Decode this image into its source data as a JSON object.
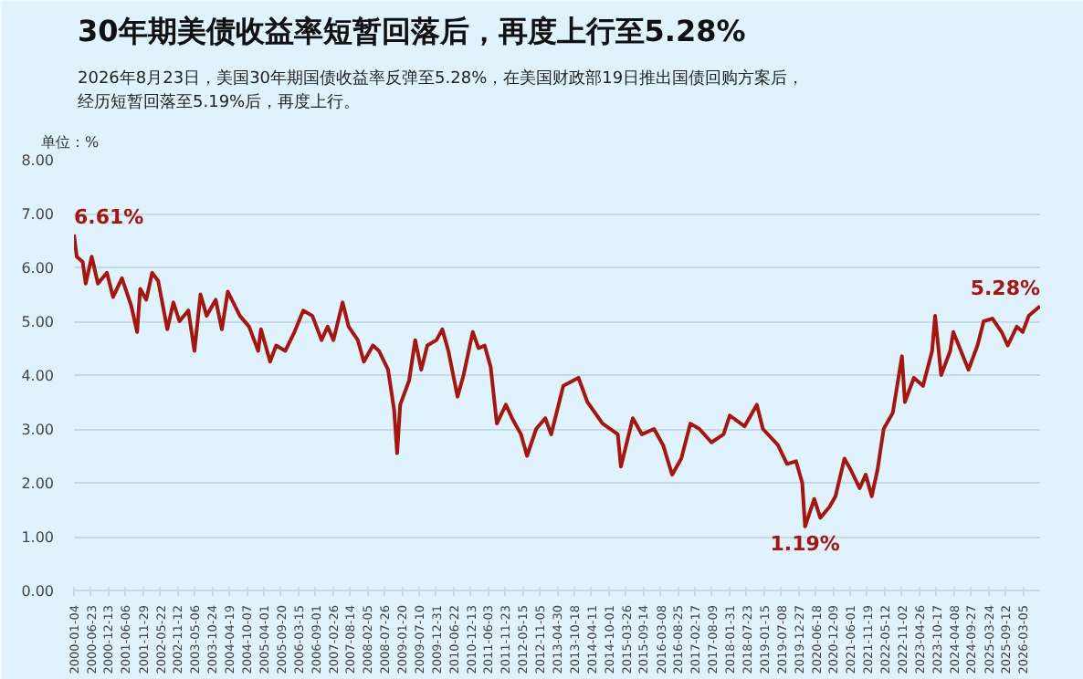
{
  "chart_data": {
    "type": "line",
    "title": "30年期美债收益率短暂回落后，再度上行至5.28%",
    "subtitle": "2026年8月23日，美国30年期国债收益率反弹至5.28%，在美国财政部19日推出国债回购方案后，经历短暂回落至5.19%后，再度上行。",
    "ylabel": "单位：%",
    "x": [
      "2000-01-04",
      "2000-02",
      "2000-04",
      "2000-05",
      "2000-07",
      "2000-09",
      "2000-12",
      "2001-02",
      "2001-05",
      "2001-08",
      "2001-10",
      "2001-11",
      "2002-01",
      "2002-03",
      "2002-05",
      "2002-08",
      "2002-10",
      "2002-12",
      "2003-03",
      "2003-05",
      "2003-07",
      "2003-09",
      "2003-12",
      "2004-02",
      "2004-04",
      "2004-08",
      "2004-11",
      "2005-02",
      "2005-03",
      "2005-06",
      "2005-08",
      "2005-11",
      "2006-02",
      "2006-05",
      "2006-08",
      "2006-11",
      "2007-01",
      "2007-03",
      "2007-06",
      "2007-08",
      "2007-11",
      "2008-01",
      "2008-04",
      "2008-06",
      "2008-09",
      "2008-11",
      "2008-12",
      "2009-01",
      "2009-04",
      "2009-06",
      "2009-08",
      "2009-10",
      "2010-01",
      "2010-03",
      "2010-05",
      "2010-08",
      "2010-10",
      "2011-01",
      "2011-03",
      "2011-05",
      "2011-07",
      "2011-09",
      "2011-12",
      "2012-02",
      "2012-05",
      "2012-07",
      "2012-10",
      "2013-01",
      "2013-03",
      "2013-07",
      "2013-12",
      "2014-03",
      "2014-08",
      "2015-01",
      "2015-02",
      "2015-06",
      "2015-09",
      "2016-01",
      "2016-04",
      "2016-07",
      "2016-10",
      "2017-01",
      "2017-04",
      "2017-08",
      "2017-12",
      "2018-02",
      "2018-07",
      "2018-11",
      "2019-01",
      "2019-06",
      "2019-09",
      "2019-12",
      "2020-02",
      "2020-03",
      "2020-06",
      "2020-08",
      "2020-11",
      "2021-01",
      "2021-04",
      "2021-06",
      "2021-09",
      "2021-11",
      "2022-01",
      "2022-03",
      "2022-05",
      "2022-08",
      "2022-11",
      "2022-12",
      "2023-03",
      "2023-06",
      "2023-09",
      "2023-10",
      "2023-12",
      "2024-03",
      "2024-04",
      "2024-09",
      "2024-12",
      "2025-02",
      "2025-05",
      "2025-08",
      "2025-10",
      "2026-01",
      "2026-03",
      "2026-05",
      "2026-08-23"
    ],
    "series": [
      {
        "color": "#a3170f",
        "values": [
          6.61,
          6.2,
          6.1,
          5.7,
          6.2,
          5.7,
          5.9,
          5.45,
          5.8,
          5.3,
          4.8,
          5.6,
          5.4,
          5.9,
          5.75,
          4.85,
          5.35,
          5.0,
          5.2,
          4.45,
          5.5,
          5.1,
          5.4,
          4.85,
          5.55,
          5.1,
          4.9,
          4.45,
          4.85,
          4.25,
          4.55,
          4.45,
          4.8,
          5.2,
          5.1,
          4.65,
          4.9,
          4.65,
          5.35,
          4.9,
          4.65,
          4.25,
          4.55,
          4.45,
          4.1,
          3.35,
          2.55,
          3.45,
          3.9,
          4.65,
          4.1,
          4.55,
          4.65,
          4.85,
          4.45,
          3.6,
          4.0,
          4.8,
          4.5,
          4.55,
          4.15,
          3.1,
          3.45,
          3.2,
          2.9,
          2.5,
          3.0,
          3.2,
          2.9,
          3.8,
          3.95,
          3.5,
          3.1,
          2.9,
          2.3,
          3.2,
          2.9,
          3.0,
          2.7,
          2.15,
          2.45,
          3.1,
          3.0,
          2.75,
          2.9,
          3.25,
          3.05,
          3.45,
          3.0,
          2.7,
          2.35,
          2.4,
          2.0,
          1.19,
          1.7,
          1.35,
          1.55,
          1.75,
          2.45,
          2.25,
          1.9,
          2.15,
          1.75,
          2.25,
          3.0,
          3.3,
          4.35,
          3.5,
          3.95,
          3.8,
          4.45,
          5.1,
          4.0,
          4.45,
          4.8,
          4.1,
          4.55,
          5.0,
          5.05,
          4.8,
          4.55,
          4.9,
          4.8,
          5.1,
          5.28
        ]
      }
    ],
    "annotations": [
      {
        "text": "6.61%",
        "x": "2000-01-04",
        "y": 6.61
      },
      {
        "text": "1.19%",
        "x": "2020-03",
        "y": 1.19
      },
      {
        "text": "5.28%",
        "x": "2026-08-23",
        "y": 5.28
      }
    ],
    "xlim": [
      "2000-01-04",
      "2026-08-23"
    ],
    "xticks": [
      "2000-01-04",
      "2000-06-23",
      "2000-12-13",
      "2001-06-06",
      "2001-11-29",
      "2002-05-22",
      "2002-11-12",
      "2003-05-06",
      "2003-10-24",
      "2004-04-19",
      "2004-10-07",
      "2005-04-01",
      "2005-09-20",
      "2006-03-15",
      "2006-09-01",
      "2007-02-26",
      "2007-08-14",
      "2008-02-05",
      "2008-07-26",
      "2009-01-20",
      "2009-07-10",
      "2009-12-31",
      "2010-06-22",
      "2010-12-13",
      "2011-06-03",
      "2011-11-23",
      "2012-05-15",
      "2012-11-05",
      "2013-04-30",
      "2013-10-18",
      "2014-04-11",
      "2014-10-01",
      "2015-03-26",
      "2015-09-14",
      "2016-03-08",
      "2016-08-25",
      "2017-02-17",
      "2017-08-09",
      "2018-01-31",
      "2018-07-23",
      "2019-01-15",
      "2019-07-08",
      "2019-12-27",
      "2020-06-18",
      "2020-12-09",
      "2021-06-01",
      "2021-11-19",
      "2022-05-12",
      "2022-11-02",
      "2023-04-26",
      "2023-10-17",
      "2024-04-08",
      "2024-09-27",
      "2025-03-24",
      "2025-09-12",
      "2026-03-05"
    ],
    "ylim": [
      0,
      8
    ],
    "yticks": [
      {
        "value": 0,
        "label": "0.00"
      },
      {
        "value": 1,
        "label": "1.00"
      },
      {
        "value": 2,
        "label": "2.00"
      },
      {
        "value": 3,
        "label": "3.00"
      },
      {
        "value": 4,
        "label": "4.00"
      },
      {
        "value": 5,
        "label": "5.00"
      },
      {
        "value": 6,
        "label": "6.00"
      },
      {
        "value": 7,
        "label": "7.00"
      },
      {
        "value": 8,
        "label": "8.00"
      }
    ],
    "grid": "y",
    "line_style": "solid",
    "marker": "none"
  }
}
